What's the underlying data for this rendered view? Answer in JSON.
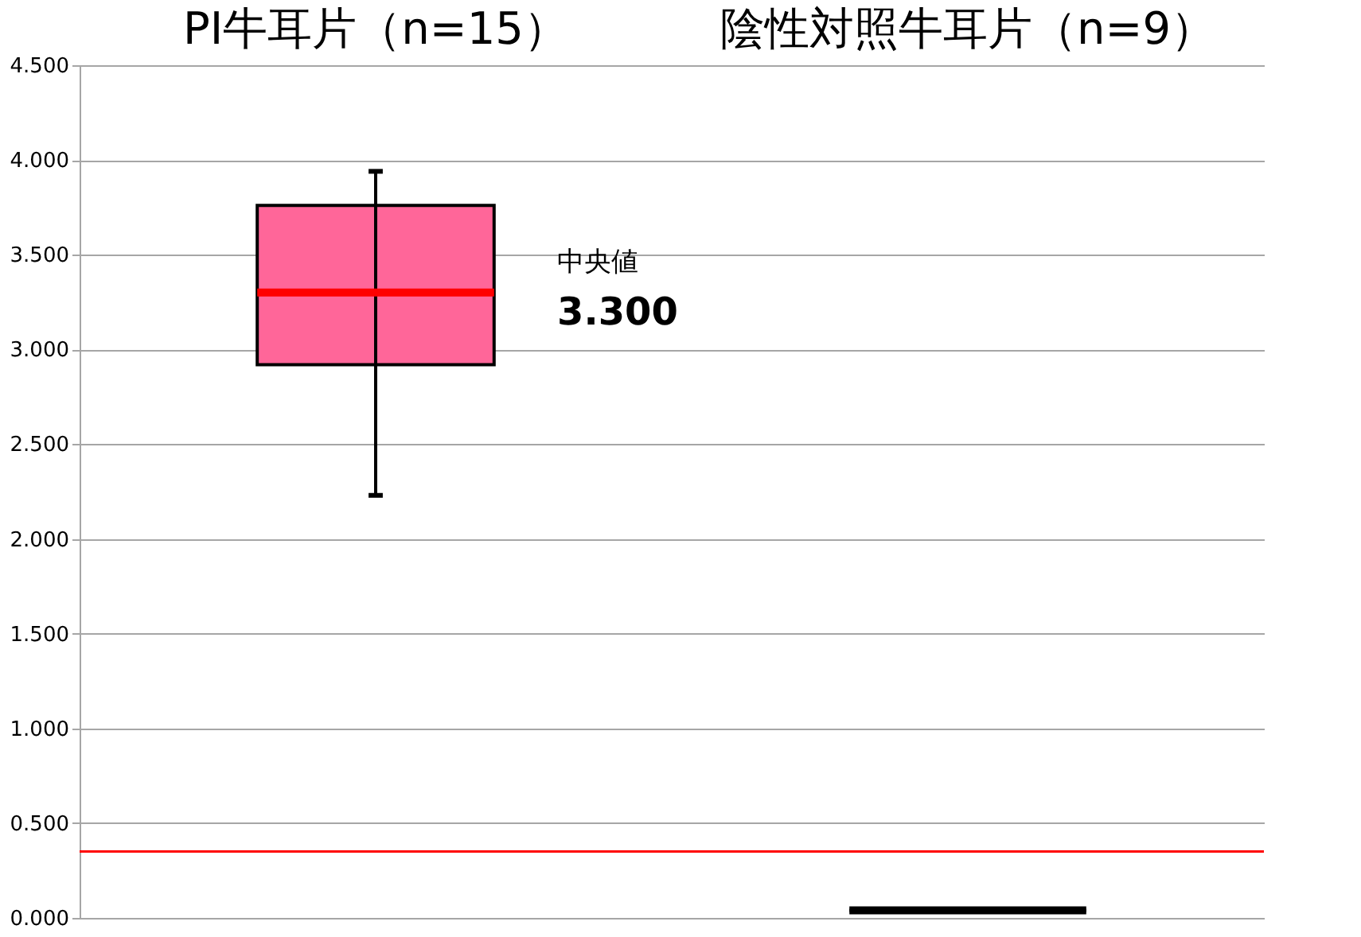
{
  "chart_data": {
    "type": "box",
    "categories": [
      "PI牛耳片（n=15）",
      "陰性対照牛耳片（n=9）"
    ],
    "boxes": [
      {
        "low": 2.23,
        "q1": 2.92,
        "median": 3.3,
        "q3": 3.76,
        "high": 3.94
      },
      {
        "low": 0.04,
        "q1": 0.04,
        "median": 0.04,
        "q3": 0.04,
        "high": 0.04
      }
    ],
    "colors": [
      "#ff6699",
      "#000000"
    ],
    "ylim": [
      0,
      4.5
    ],
    "yticks": [
      {
        "value": 0,
        "label": "0.000"
      },
      {
        "value": 0.5,
        "label": "0.500"
      },
      {
        "value": 1,
        "label": "1.000"
      },
      {
        "value": 1.5,
        "label": "1.500"
      },
      {
        "value": 2,
        "label": "2.000"
      },
      {
        "value": 2.5,
        "label": "2.500"
      },
      {
        "value": 3,
        "label": "3.000"
      },
      {
        "value": 3.5,
        "label": "3.500"
      },
      {
        "value": 4,
        "label": "4.000"
      },
      {
        "value": 4.5,
        "label": "4.500"
      }
    ],
    "ref_lines": [
      {
        "axis": "y",
        "value": 0.35,
        "color": "#ff0000"
      }
    ],
    "annotations": [
      "中央値",
      "3.300"
    ],
    "grid": "y"
  }
}
